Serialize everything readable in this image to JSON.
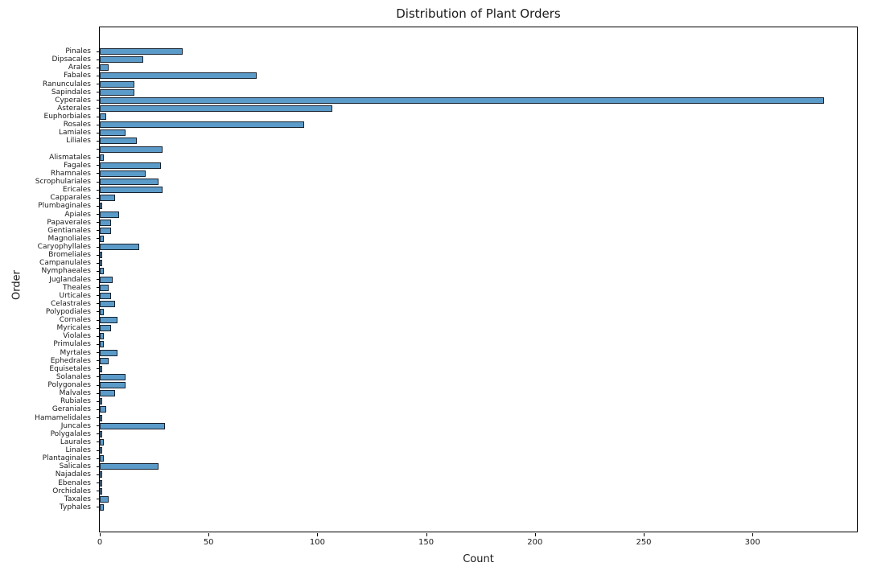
{
  "title": "Distribution of Plant Orders",
  "colors": {
    "bar_fill": "#5b9bc9",
    "bar_edge": "#17222e",
    "axis": "#000000",
    "text": "#1a1a1a"
  },
  "chart_data": {
    "type": "bar",
    "orientation": "horizontal",
    "title": "Distribution of Plant Orders",
    "xlabel": "Count",
    "ylabel": "Order",
    "xlim": [
      0,
      348
    ],
    "xticks": [
      0,
      50,
      100,
      150,
      200,
      250,
      300
    ],
    "grid": false,
    "legend": "none",
    "categories": [
      "Pinales",
      "Dipsacales",
      "Arales",
      "Fabales",
      "Ranunculales",
      "Sapindales",
      "Cyperales",
      "Asterales",
      "Euphorbiales",
      "Rosales",
      "Lamiales",
      "Liliales",
      "",
      "Alismatales",
      "Fagales",
      "Rhamnales",
      "Scrophulariales",
      "Ericales",
      "Capparales",
      "Plumbaginales",
      "Apiales",
      "Papaverales",
      "Gentianales",
      "Magnoliales",
      "Caryophyllales",
      "Bromeliales",
      "Campanulales",
      "Nymphaeales",
      "Juglandales",
      "Theales",
      "Urticales",
      "Celastrales",
      "Polypodiales",
      "Cornales",
      "Myricales",
      "Violales",
      "Primulales",
      "Myrtales",
      "Ephedrales",
      "Equisetales",
      "Solanales",
      "Polygonales",
      "Malvales",
      "Rubiales",
      "Geraniales",
      "Hamamelidales",
      "Juncales",
      "Polygalales",
      "Laurales",
      "Linales",
      "Plantaginales",
      "Salicales",
      "Najadales",
      "Ebenales",
      "Orchidales",
      "Taxales",
      "Typhales"
    ],
    "values": [
      38,
      20,
      4,
      72,
      16,
      16,
      333,
      107,
      3,
      94,
      12,
      17,
      29,
      2,
      28,
      21,
      27,
      29,
      7,
      1,
      9,
      5,
      5,
      2,
      18,
      1,
      1,
      2,
      6,
      4,
      5,
      7,
      2,
      8,
      5,
      2,
      2,
      8,
      4,
      1,
      12,
      12,
      7,
      1,
      3,
      1,
      30,
      1,
      2,
      1,
      2,
      27,
      1,
      1,
      1,
      4,
      2
    ]
  }
}
